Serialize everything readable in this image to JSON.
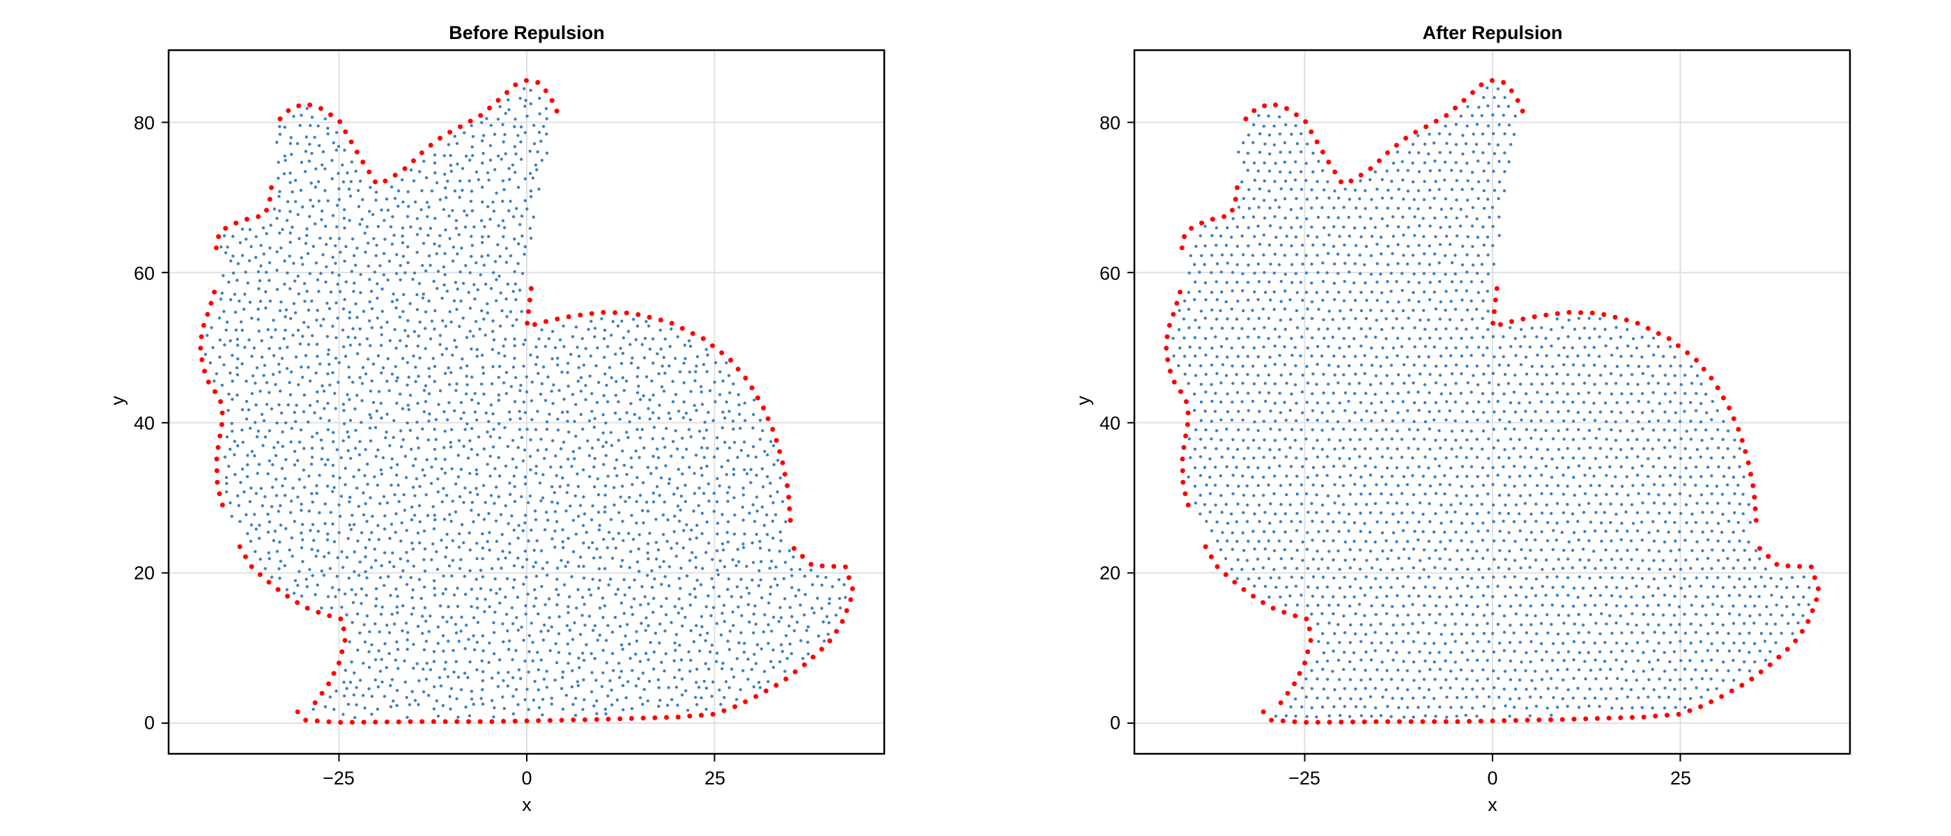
{
  "figure": {
    "panels": [
      {
        "title": "Before Repulsion",
        "xlabel": "x",
        "ylabel": "y"
      },
      {
        "title": "After Repulsion",
        "xlabel": "x",
        "ylabel": "y"
      }
    ],
    "xticks": [
      "−25",
      "0",
      "25"
    ],
    "yticks": [
      "0",
      "20",
      "40",
      "60",
      "80"
    ]
  },
  "chart_data": [
    {
      "type": "scatter",
      "title": "Before Repulsion",
      "xlabel": "x",
      "ylabel": "y",
      "xlim": [
        -47.6,
        47.5
      ],
      "ylim": [
        -4.1,
        89.8
      ],
      "xticks": [
        -25,
        0,
        25
      ],
      "yticks": [
        0,
        20,
        40,
        60,
        80
      ],
      "grid": true,
      "aspect": "equal",
      "series": [
        {
          "name": "interior points",
          "color": "#3E80BE",
          "marker_size": 4,
          "description": "~1600 points filling a 2D Stanford-bunny silhouette on a roughly hexagonal lattice, spacing ~1.4 units, with irregular (jittered) arrangement"
        },
        {
          "name": "boundary points",
          "color": "#FF0000",
          "marker_size": 7,
          "description": "points along the bunny outline (bottom, tail, back, ears, head, chest)"
        }
      ]
    },
    {
      "type": "scatter",
      "title": "After Repulsion",
      "xlabel": "x",
      "ylabel": "y",
      "xlim": [
        -47.6,
        47.5
      ],
      "ylim": [
        -4.1,
        89.8
      ],
      "xticks": [
        -25,
        0,
        25
      ],
      "yticks": [
        0,
        20,
        40,
        60,
        80
      ],
      "grid": true,
      "aspect": "equal",
      "series": [
        {
          "name": "interior points",
          "color": "#3E80BE",
          "marker_size": 4,
          "description": "same interior points after repulsion: more uniform, regular hexagonal spacing"
        },
        {
          "name": "boundary points",
          "color": "#FF0000",
          "marker_size": 7,
          "description": "same boundary points as the left panel"
        }
      ]
    }
  ],
  "shape": {
    "outline": [
      [
        -30.5,
        1.5
      ],
      [
        -29.5,
        0.4
      ],
      [
        -25,
        0.1
      ],
      [
        -15,
        0.2
      ],
      [
        -5,
        0.2
      ],
      [
        0,
        0.3
      ],
      [
        10,
        0.5
      ],
      [
        20,
        0.8
      ],
      [
        25,
        1.2
      ],
      [
        28,
        2.3
      ],
      [
        31,
        3.8
      ],
      [
        34,
        5.5
      ],
      [
        37,
        7.8
      ],
      [
        40,
        10.5
      ],
      [
        41.8,
        13
      ],
      [
        42.8,
        15.5
      ],
      [
        43.5,
        17.5
      ],
      [
        43,
        19
      ],
      [
        42.5,
        20.8
      ],
      [
        38,
        21
      ],
      [
        35,
        23.8
      ],
      [
        35.1,
        27
      ],
      [
        34.8,
        31
      ],
      [
        34,
        35
      ],
      [
        33,
        38.5
      ],
      [
        31.5,
        42
      ],
      [
        29.5,
        45.5
      ],
      [
        27,
        48.5
      ],
      [
        23.5,
        51.2
      ],
      [
        19,
        53.4
      ],
      [
        14,
        54.6
      ],
      [
        10,
        54.7
      ],
      [
        6,
        54.2
      ],
      [
        3,
        53.6
      ],
      [
        0,
        52.8
      ],
      [
        0.6,
        58
      ],
      [
        1.3,
        63
      ],
      [
        1.8,
        68
      ],
      [
        2.6,
        73
      ],
      [
        3.5,
        76
      ],
      [
        4.5,
        78.5
      ],
      [
        4,
        81.5
      ],
      [
        3,
        83.7
      ],
      [
        1.5,
        85.3
      ],
      [
        0,
        85.6
      ],
      [
        -1.5,
        85
      ],
      [
        -3.5,
        83.2
      ],
      [
        -6,
        81
      ],
      [
        -8.5,
        79.6
      ],
      [
        -11,
        78.3
      ],
      [
        -13.5,
        76.4
      ],
      [
        -16,
        74
      ],
      [
        -18.5,
        72.3
      ],
      [
        -20,
        71.8
      ],
      [
        -22,
        75
      ],
      [
        -24,
        78.5
      ],
      [
        -25,
        80.3
      ],
      [
        -27.5,
        81.9
      ],
      [
        -29.5,
        82.5
      ],
      [
        -31.5,
        81.8
      ],
      [
        -33.3,
        80
      ],
      [
        -34.3,
        77
      ],
      [
        -34.5,
        74
      ],
      [
        -34,
        71.3
      ],
      [
        -34.3,
        69
      ],
      [
        -35,
        67.6
      ],
      [
        -37,
        67.2
      ],
      [
        -39,
        66.5
      ],
      [
        -40.8,
        65.5
      ],
      [
        -41.3,
        64
      ],
      [
        -41.4,
        62
      ],
      [
        -41.5,
        59.5
      ],
      [
        -41.6,
        57.4
      ],
      [
        -42.3,
        55
      ],
      [
        -43,
        53
      ],
      [
        -43.5,
        50.5
      ],
      [
        -43.2,
        48
      ],
      [
        -42.8,
        46.5
      ],
      [
        -42.2,
        45
      ],
      [
        -41,
        43.5
      ],
      [
        -40.5,
        42
      ],
      [
        -40.6,
        39.5
      ],
      [
        -41,
        37.5
      ],
      [
        -41.3,
        35
      ],
      [
        -41.2,
        32
      ],
      [
        -40.8,
        30
      ],
      [
        -40.2,
        28
      ],
      [
        -39.4,
        26
      ],
      [
        -38.2,
        23.5
      ],
      [
        -36.8,
        21
      ],
      [
        -35,
        19.3
      ],
      [
        -33,
        17.7
      ],
      [
        -31,
        16.3
      ],
      [
        -29,
        15.2
      ],
      [
        -27,
        14.5
      ],
      [
        -24.5,
        13.8
      ],
      [
        -24.2,
        11
      ],
      [
        -25,
        8
      ],
      [
        -26.5,
        5
      ],
      [
        -28.2,
        2.7
      ]
    ],
    "red_segments": [
      [
        0,
        20
      ],
      [
        21,
        35
      ],
      [
        41,
        60
      ],
      [
        63,
        70
      ],
      [
        72,
        86
      ],
      [
        88,
        103
      ]
    ]
  }
}
